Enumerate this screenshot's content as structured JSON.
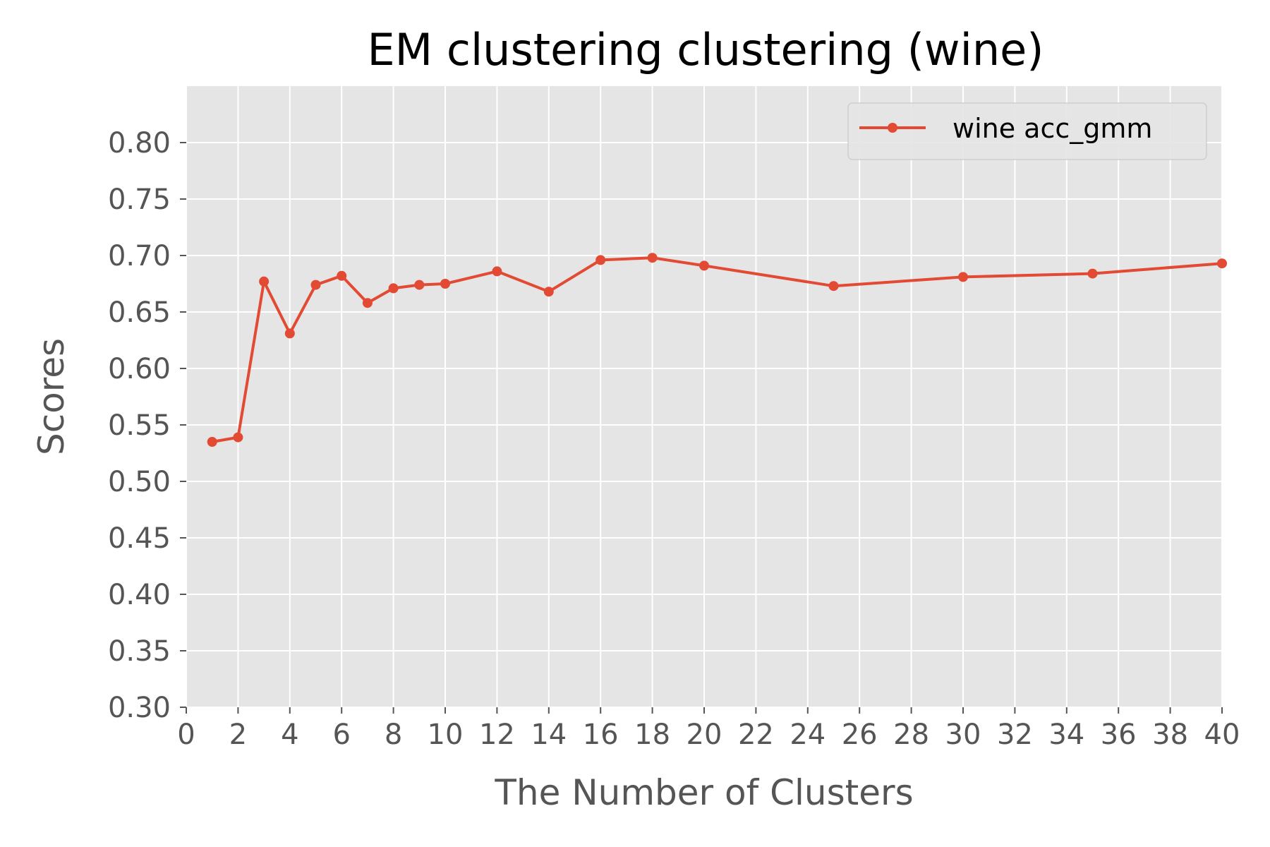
{
  "chart_data": {
    "type": "line",
    "title": "EM clustering clustering (wine)",
    "xlabel": "The Number of Clusters",
    "ylabel": "Scores",
    "xlim": [
      0,
      40
    ],
    "ylim": [
      0.3,
      0.85
    ],
    "xticks": [
      0,
      2,
      4,
      6,
      8,
      10,
      12,
      14,
      16,
      18,
      20,
      22,
      24,
      26,
      28,
      30,
      32,
      34,
      36,
      38,
      40
    ],
    "xtick_labels": [
      "0",
      "2",
      "4",
      "6",
      "8",
      "10",
      "12",
      "14",
      "16",
      "18",
      "20",
      "22",
      "24",
      "26",
      "28",
      "30",
      "32",
      "34",
      "36",
      "38",
      "40"
    ],
    "yticks": [
      0.3,
      0.35,
      0.4,
      0.45,
      0.5,
      0.55,
      0.6,
      0.65,
      0.7,
      0.75,
      0.8
    ],
    "ytick_labels": [
      "0.30",
      "0.35",
      "0.40",
      "0.45",
      "0.50",
      "0.55",
      "0.60",
      "0.65",
      "0.70",
      "0.75",
      "0.80"
    ],
    "grid": true,
    "legend_position": "top-right",
    "colors": {
      "background": "#e5e5e5",
      "grid": "#ffffff",
      "series": "#e24a33",
      "tick_text": "#555555"
    },
    "series": [
      {
        "name": "wine acc_gmm",
        "x": [
          1,
          2,
          3,
          4,
          5,
          6,
          7,
          8,
          9,
          10,
          12,
          14,
          16,
          18,
          20,
          25,
          30,
          35,
          40
        ],
        "y": [
          0.535,
          0.539,
          0.677,
          0.631,
          0.674,
          0.682,
          0.658,
          0.671,
          0.674,
          0.675,
          0.686,
          0.668,
          0.696,
          0.698,
          0.691,
          0.673,
          0.681,
          0.684,
          0.693
        ]
      }
    ]
  }
}
